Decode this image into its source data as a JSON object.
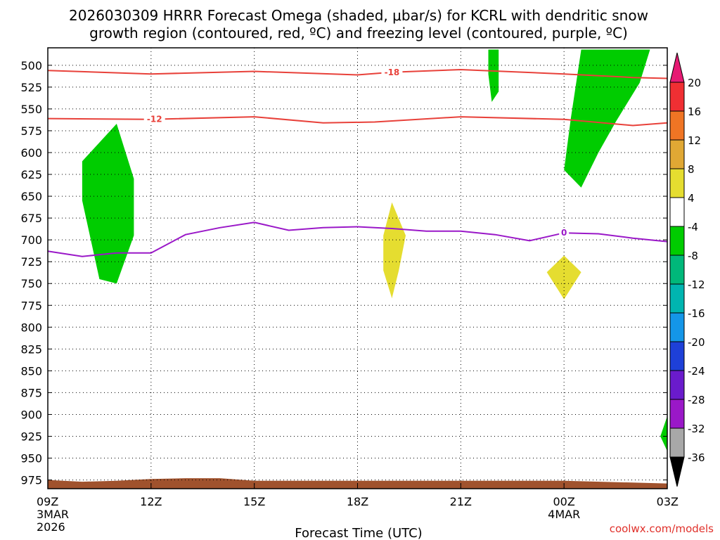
{
  "chart_data": {
    "type": "heatmap",
    "title_line1": "2026030309 HRRR Forecast Omega (shaded, μbar/s) for KCRL with dendritic snow",
    "title_line2": "growth region (contoured, red, ºC) and freezing level (contoured, purple, ºC)",
    "xlabel": "Forecast Time (UTC)",
    "credit": "coolwx.com/models",
    "x_range": [
      0,
      18
    ],
    "y_range_hpa": [
      480,
      985
    ],
    "x_ticks": [
      {
        "x": 0,
        "label": "09Z",
        "sub1": "3MAR",
        "sub2": "2026"
      },
      {
        "x": 3,
        "label": "12Z"
      },
      {
        "x": 6,
        "label": "15Z"
      },
      {
        "x": 9,
        "label": "18Z"
      },
      {
        "x": 12,
        "label": "21Z"
      },
      {
        "x": 15,
        "label": "00Z",
        "sub1": "4MAR"
      },
      {
        "x": 18,
        "label": "03Z"
      }
    ],
    "y_ticks": [
      500,
      525,
      550,
      575,
      600,
      625,
      650,
      675,
      700,
      725,
      750,
      775,
      800,
      825,
      850,
      875,
      900,
      925,
      950,
      975
    ],
    "contours": [
      {
        "name": "-18",
        "color": "#e8413a",
        "label_x": 10.0,
        "points": [
          [
            0,
            506
          ],
          [
            3,
            510
          ],
          [
            6,
            507
          ],
          [
            9,
            511
          ],
          [
            10,
            508
          ],
          [
            12,
            505
          ],
          [
            15,
            510
          ],
          [
            17,
            514
          ],
          [
            18,
            515
          ]
        ]
      },
      {
        "name": "-12",
        "color": "#e8413a",
        "label_x": 3.1,
        "points": [
          [
            0,
            561
          ],
          [
            3,
            562
          ],
          [
            6,
            559
          ],
          [
            8,
            566
          ],
          [
            9.5,
            565
          ],
          [
            12,
            559
          ],
          [
            15,
            562
          ],
          [
            17,
            569
          ],
          [
            18,
            566
          ]
        ]
      },
      {
        "name": "0",
        "color": "#9a18c8",
        "label_x": 15.0,
        "points": [
          [
            0,
            713
          ],
          [
            1,
            719
          ],
          [
            2,
            715
          ],
          [
            3,
            715
          ],
          [
            4,
            694
          ],
          [
            5,
            686
          ],
          [
            6,
            680
          ],
          [
            7,
            689
          ],
          [
            8,
            686
          ],
          [
            9,
            685
          ],
          [
            10,
            687
          ],
          [
            11,
            690
          ],
          [
            12,
            690
          ],
          [
            13,
            694
          ],
          [
            14,
            701
          ],
          [
            15,
            692
          ],
          [
            16,
            693
          ],
          [
            17,
            698
          ],
          [
            18,
            702
          ]
        ]
      }
    ],
    "shaded_regions": [
      {
        "label": "-8 to -4",
        "color": "#00cc00",
        "points": [
          [
            1,
            610
          ],
          [
            2,
            567
          ],
          [
            2.5,
            630
          ],
          [
            2.5,
            695
          ],
          [
            2,
            750
          ],
          [
            1.5,
            745
          ],
          [
            1,
            655
          ]
        ]
      },
      {
        "label": "-8 to -4",
        "color": "#00cc00",
        "points": [
          [
            12.8,
            482
          ],
          [
            13.1,
            482
          ],
          [
            13.1,
            530
          ],
          [
            12.9,
            542
          ],
          [
            12.8,
            510
          ]
        ]
      },
      {
        "label": "-8 to -4",
        "color": "#00cc00",
        "points": [
          [
            15.5,
            482
          ],
          [
            17.5,
            482
          ],
          [
            17.2,
            520
          ],
          [
            16.5,
            565
          ],
          [
            16,
            600
          ],
          [
            15.5,
            640
          ],
          [
            15,
            620
          ],
          [
            15.2,
            560
          ]
        ]
      },
      {
        "label": "-8 to -4",
        "color": "#00cc00",
        "points": [
          [
            18,
            902
          ],
          [
            18,
            942
          ],
          [
            17.8,
            925
          ]
        ]
      },
      {
        "label": "4 to 8",
        "color": "#e5dd30",
        "points": [
          [
            10,
            657
          ],
          [
            10.4,
            695
          ],
          [
            10.2,
            735
          ],
          [
            10,
            767
          ],
          [
            9.75,
            735
          ],
          [
            9.75,
            695
          ]
        ]
      },
      {
        "label": "4 to 8",
        "color": "#e5dd30",
        "points": [
          [
            15,
            718
          ],
          [
            15.5,
            737
          ],
          [
            15,
            768
          ],
          [
            14.5,
            737
          ]
        ]
      }
    ],
    "terrain": {
      "color": "#a0522d",
      "points": [
        [
          0,
          975
        ],
        [
          1,
          977
        ],
        [
          2,
          976
        ],
        [
          3,
          974
        ],
        [
          4,
          973
        ],
        [
          5,
          973
        ],
        [
          6,
          976
        ],
        [
          9,
          976
        ],
        [
          12,
          976
        ],
        [
          15,
          976
        ],
        [
          18,
          979
        ]
      ]
    },
    "colorbar": {
      "labels": [
        "20",
        "16",
        "12",
        "8",
        "4",
        "-4",
        "-8",
        "-12",
        "-16",
        "-20",
        "-24",
        "-28",
        "-32",
        "-36"
      ],
      "colors": [
        "#f02f33",
        "#f07524",
        "#e0a834",
        "#e5dd30",
        "#ffffff",
        "#00cc00",
        "#00b87a",
        "#00b5b0",
        "#1496e8",
        "#1e40d8",
        "#6a1bcc",
        "#9a18c8",
        "#a8a8a8"
      ],
      "top_color": "#e61a73",
      "bottom_color": "#000000"
    }
  }
}
